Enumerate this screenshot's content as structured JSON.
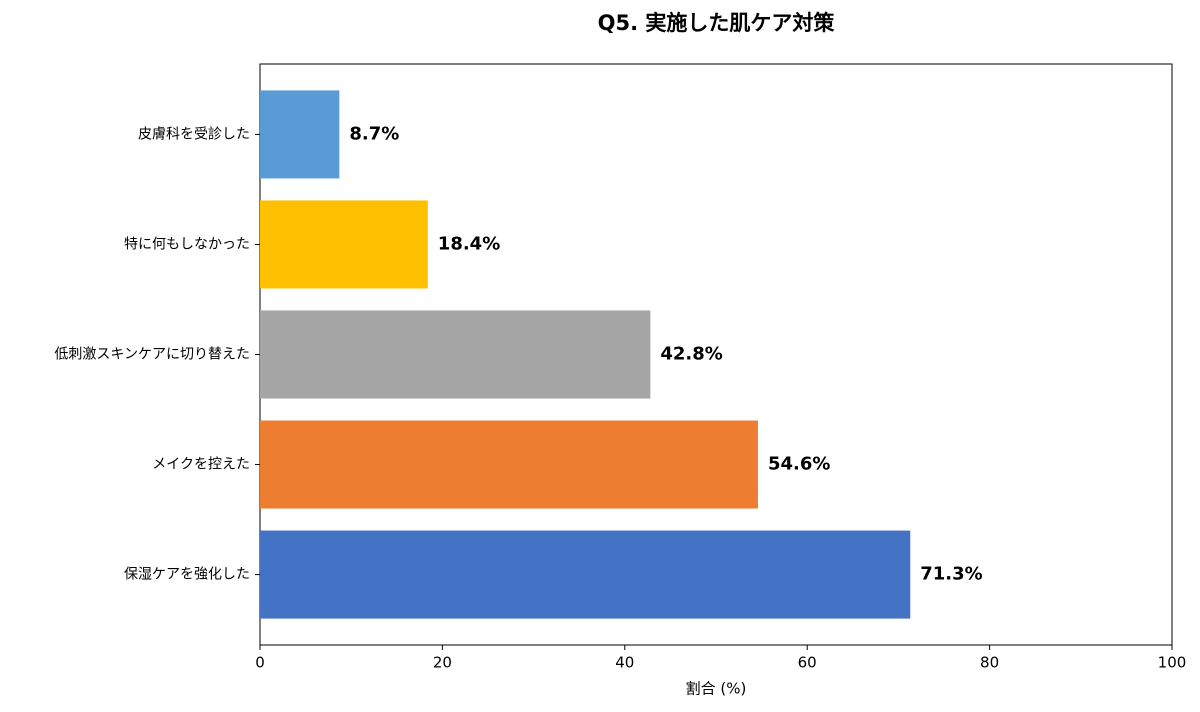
{
  "chart_data": {
    "type": "barh",
    "title": "Q5. 実施した肌ケア対策",
    "xlabel": "割合 (%)",
    "categories": [
      "皮膚科を受診した",
      "特に何もしなかった",
      "低刺激スキンケアに切り替えた",
      "メイクを控えた",
      "保湿ケアを強化した"
    ],
    "values": [
      8.7,
      18.4,
      42.8,
      54.6,
      71.3
    ],
    "value_labels": [
      "8.7%",
      "18.4%",
      "42.8%",
      "54.6%",
      "71.3%"
    ],
    "colors": [
      "#5b9bd5",
      "#ffc000",
      "#a5a5a5",
      "#ed7d31",
      "#4472c4"
    ],
    "xlim": [
      0,
      100
    ],
    "xticks": [
      0,
      20,
      40,
      60,
      80,
      100
    ],
    "grid": false
  }
}
